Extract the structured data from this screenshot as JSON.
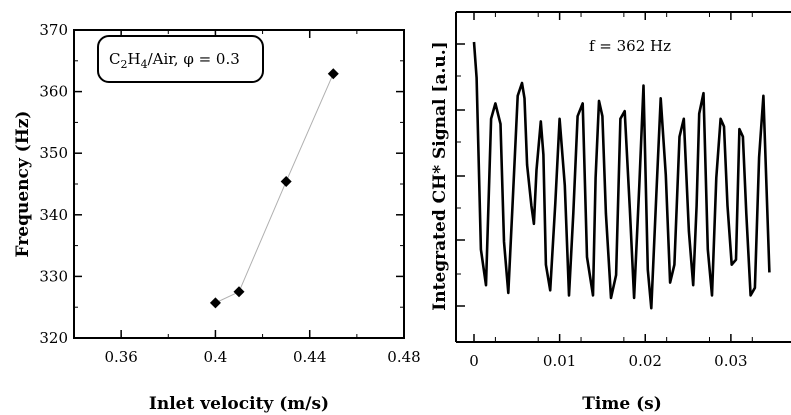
{
  "chart_data": [
    {
      "type": "scatter",
      "xlabel": "Inlet velocity (m/s)",
      "ylabel": "Frequency (Hz)",
      "xlim": [
        0.34,
        0.48
      ],
      "ylim": [
        320,
        370
      ],
      "xticks": [
        "0.36",
        "0.4",
        "0.44",
        "0.48"
      ],
      "yticks": [
        "320",
        "330",
        "340",
        "350",
        "360",
        "370"
      ],
      "annotation": {
        "fuel": "C",
        "fuel_sub1": "2",
        "fuel_h": "H",
        "fuel_sub2": "4",
        "rest": "/Air, φ = 0.3"
      },
      "series": [
        {
          "x": [
            0.4,
            0.41,
            0.43,
            0.45
          ],
          "y": [
            325.7,
            327.5,
            345.4,
            362.9
          ],
          "marker": "diamond",
          "line_color": "#b0b0b0",
          "marker_color": "#000000"
        }
      ],
      "grid": false
    },
    {
      "type": "line",
      "xlabel": "Time (s)",
      "ylabel": "Integrated CH* Signal [a.u.]",
      "xlim": [
        0,
        0.035
      ],
      "xticks": [
        "0",
        "0.01",
        "0.02",
        "0.03"
      ],
      "annotation": "f = 362 Hz",
      "series": [
        {
          "color": "#000000",
          "x": [
            0.0,
            0.0003,
            0.0008,
            0.0014,
            0.0017,
            0.002,
            0.0025,
            0.0031,
            0.0035,
            0.004,
            0.0045,
            0.0051,
            0.0056,
            0.0059,
            0.0062,
            0.0067,
            0.007,
            0.0073,
            0.0078,
            0.0081,
            0.0084,
            0.0089,
            0.0095,
            0.01,
            0.0106,
            0.0111,
            0.0116,
            0.0121,
            0.0127,
            0.0132,
            0.0139,
            0.0142,
            0.0146,
            0.015,
            0.0154,
            0.016,
            0.0166,
            0.0171,
            0.0176,
            0.0182,
            0.0187,
            0.0193,
            0.0198,
            0.0203,
            0.0207,
            0.0213,
            0.0218,
            0.0224,
            0.0229,
            0.0234,
            0.024,
            0.0245,
            0.0251,
            0.0256,
            0.026,
            0.0263,
            0.0268,
            0.0273,
            0.0278,
            0.0283,
            0.0288,
            0.0292,
            0.0296,
            0.0301,
            0.0306,
            0.031,
            0.0314,
            0.0318,
            0.0323,
            0.0328,
            0.0333,
            0.0338,
            0.0345
          ],
          "y": [
            1.0,
            0.86,
            0.19,
            0.05,
            0.38,
            0.7,
            0.76,
            0.68,
            0.22,
            0.02,
            0.36,
            0.79,
            0.84,
            0.78,
            0.52,
            0.36,
            0.29,
            0.5,
            0.69,
            0.56,
            0.13,
            0.03,
            0.37,
            0.7,
            0.44,
            0.01,
            0.33,
            0.71,
            0.76,
            0.16,
            0.01,
            0.47,
            0.77,
            0.71,
            0.33,
            0.0,
            0.09,
            0.7,
            0.73,
            0.35,
            0.0,
            0.44,
            0.83,
            0.11,
            -0.04,
            0.41,
            0.78,
            0.48,
            0.06,
            0.13,
            0.63,
            0.7,
            0.26,
            0.05,
            0.36,
            0.72,
            0.8,
            0.19,
            0.01,
            0.47,
            0.7,
            0.67,
            0.36,
            0.13,
            0.15,
            0.66,
            0.63,
            0.33,
            0.01,
            0.04,
            0.55,
            0.79,
            0.1
          ]
        }
      ],
      "grid": false
    }
  ]
}
